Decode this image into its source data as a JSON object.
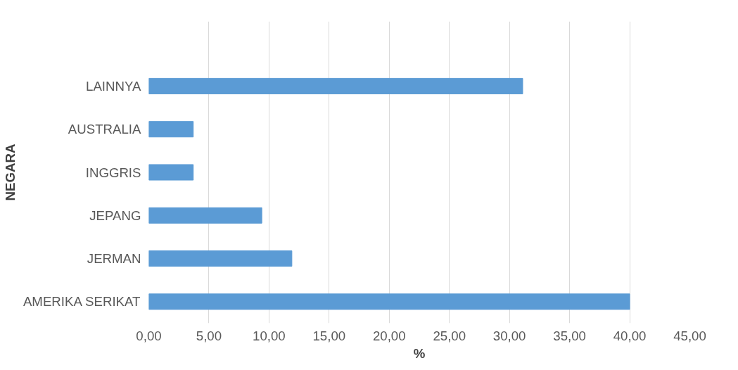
{
  "chart_data": {
    "type": "bar",
    "orientation": "horizontal",
    "xlabel": "%",
    "ylabel": "NEGARA",
    "categories": [
      "LAINNYA",
      "AUSTRALIA",
      "INGGRIS",
      "JEPANG",
      "JERMAN",
      "AMERIKA SERIKAT"
    ],
    "values": [
      31.1,
      3.7,
      3.7,
      9.4,
      11.9,
      40.0
    ],
    "color": "#5b9bd5",
    "xlim": [
      0,
      45
    ],
    "xticks": [
      {
        "value": 0,
        "label": "0,00"
      },
      {
        "value": 5,
        "label": "5,00"
      },
      {
        "value": 10,
        "label": "10,00"
      },
      {
        "value": 15,
        "label": "15,00"
      },
      {
        "value": 20,
        "label": "20,00"
      },
      {
        "value": 25,
        "label": "25,00"
      },
      {
        "value": 30,
        "label": "30,00"
      },
      {
        "value": 35,
        "label": "35,00"
      },
      {
        "value": 40,
        "label": "40,00"
      },
      {
        "value": 45,
        "label": "45,00"
      }
    ],
    "grid": "x"
  }
}
